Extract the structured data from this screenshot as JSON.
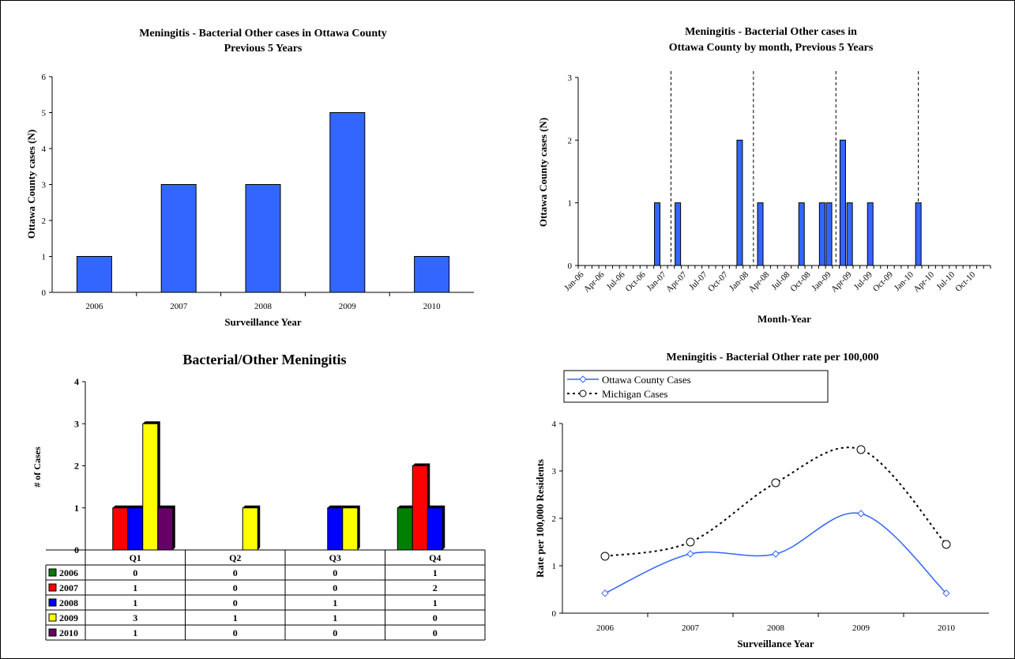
{
  "colors": {
    "bar_blue": "#3366FF",
    "line_blue": "#3366FF",
    "michigan": "#000000",
    "y2006": "#008000",
    "y2007": "#FF0000",
    "y2008": "#0000FF",
    "y2009": "#FFFF00",
    "y2010": "#660066"
  },
  "chart_data": [
    {
      "type": "bar",
      "title": [
        "Meningitis - Bacterial Other cases in Ottawa County",
        "Previous 5 Years"
      ],
      "xlabel": "Surveillance Year",
      "ylabel": "Ottawa County cases (N)",
      "ylim": [
        0,
        6
      ],
      "yticks": [
        "0",
        "1",
        "2",
        "3",
        "4",
        "5",
        "6"
      ],
      "categories": [
        "2006",
        "2007",
        "2008",
        "2009",
        "2010"
      ],
      "values": [
        1,
        3,
        3,
        5,
        1
      ],
      "data_labels": [
        "1",
        "3",
        "3",
        "5",
        "1"
      ],
      "color": "#3366FF"
    },
    {
      "type": "bar",
      "title": [
        "Meningitis - Bacterial Other cases in",
        "Ottawa County by month, Previous 5 Years"
      ],
      "xlabel": "Month-Year",
      "ylabel": "Ottawa County cases (N)",
      "ylim": [
        0,
        3
      ],
      "yticks": [
        "0",
        "1",
        "2",
        "3"
      ],
      "month_start": "Jan-06",
      "n_months": 60,
      "xtick_labels": [
        "Jan-06",
        "Apr-06",
        "Jul-06",
        "Oct-06",
        "Jan-07",
        "Apr-07",
        "Jul-07",
        "Oct-07",
        "Jan-08",
        "Apr-08",
        "Jul-08",
        "Oct-08",
        "Jan-09",
        "Apr-09",
        "Jul-09",
        "Oct-09",
        "Jan-10",
        "Apr-10",
        "Jul-10",
        "Oct-10"
      ],
      "points": [
        {
          "month": "Dec-06",
          "value": 1
        },
        {
          "month": "Mar-07",
          "value": 1
        },
        {
          "month": "Dec-07",
          "value": 2
        },
        {
          "month": "Mar-08",
          "value": 1
        },
        {
          "month": "Sep-08",
          "value": 1
        },
        {
          "month": "Dec-08",
          "value": 1
        },
        {
          "month": "Jan-09",
          "value": 1
        },
        {
          "month": "Mar-09",
          "value": 2
        },
        {
          "month": "Apr-09",
          "value": 1
        },
        {
          "month": "Jul-09",
          "value": 1
        },
        {
          "month": "Feb-10",
          "value": 1
        }
      ],
      "year_dividers": [
        "Feb-07",
        "Feb-08",
        "Feb-09",
        "Feb-10"
      ],
      "color": "#3366FF"
    },
    {
      "type": "bar",
      "title": "Bacterial/Other Meningitis",
      "ylabel": "# of Cases",
      "ylim": [
        0,
        4
      ],
      "yticks": [
        "0",
        "1",
        "2",
        "3",
        "4"
      ],
      "categories": [
        "Q1",
        "Q2",
        "Q3",
        "Q4"
      ],
      "series": [
        {
          "name": "2006",
          "values": [
            0,
            0,
            0,
            1
          ],
          "labels": [
            "0",
            "0",
            "0",
            "1"
          ],
          "color": "#008000"
        },
        {
          "name": "2007",
          "values": [
            1,
            0,
            0,
            2
          ],
          "labels": [
            "1",
            "0",
            "0",
            "2"
          ],
          "color": "#FF0000"
        },
        {
          "name": "2008",
          "values": [
            1,
            0,
            1,
            1
          ],
          "labels": [
            "1",
            "0",
            "1",
            "1"
          ],
          "color": "#0000FF"
        },
        {
          "name": "2009",
          "values": [
            3,
            1,
            1,
            0
          ],
          "labels": [
            "3",
            "1",
            "1",
            "0"
          ],
          "color": "#FFFF00"
        },
        {
          "name": "2010",
          "values": [
            1,
            0,
            0,
            0
          ],
          "labels": [
            "1",
            "0",
            "0",
            "0"
          ],
          "color": "#660066"
        }
      ],
      "data_table": true
    },
    {
      "type": "line",
      "title": "Meningitis - Bacterial Other rate per 100,000",
      "xlabel": "Surveillance Year",
      "ylabel": "Rate per 100,000 Residents",
      "ylim": [
        0,
        4
      ],
      "yticks": [
        "0",
        "1",
        "2",
        "3",
        "4"
      ],
      "categories": [
        "2006",
        "2007",
        "2008",
        "2009",
        "2010"
      ],
      "legend_position": "top",
      "series": [
        {
          "name": "Ottawa County Cases",
          "values": [
            0.42,
            1.25,
            1.25,
            2.1,
            0.42
          ],
          "color": "#3366FF",
          "marker": "diamond"
        },
        {
          "name": "Michigan Cases",
          "values": [
            1.2,
            1.5,
            2.75,
            3.45,
            1.45
          ],
          "color": "#000000",
          "marker": "circle",
          "dash": "dotted"
        }
      ]
    }
  ]
}
